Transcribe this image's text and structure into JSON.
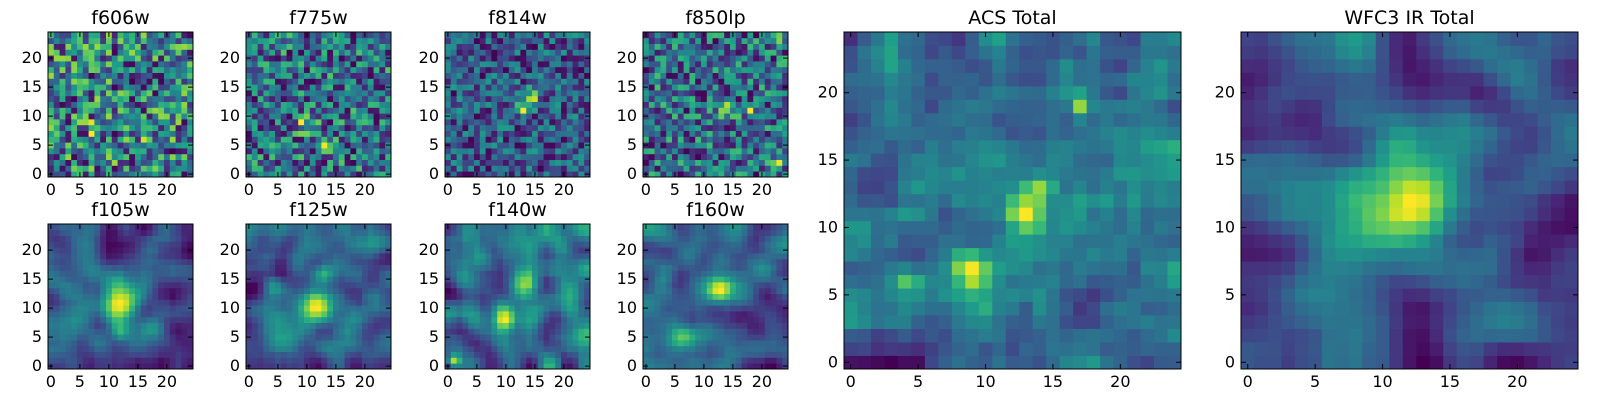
{
  "figure": {
    "description_colormap": "viridis",
    "colormap_stops": [
      "#440154",
      "#482878",
      "#3e4989",
      "#31688e",
      "#26828e",
      "#1f9e89",
      "#35b779",
      "#6ece58",
      "#b5de2b",
      "#fde725"
    ]
  },
  "chart_data": [
    {
      "type": "heatmap",
      "title": "f606w",
      "grid_size": 25,
      "seed": 11,
      "style": "noise",
      "xticks": [
        0,
        5,
        10,
        15,
        20
      ],
      "yticks": [
        0,
        5,
        10,
        15,
        20
      ],
      "xlim": [
        0,
        25
      ],
      "ylim": [
        0,
        25
      ],
      "peaks": [
        {
          "x": 7,
          "y": 8,
          "amp": 0.4,
          "sigma": 0.6
        },
        {
          "x": 16,
          "y": 7,
          "amp": 0.25,
          "sigma": 0.6
        }
      ]
    },
    {
      "type": "heatmap",
      "title": "f775w",
      "grid_size": 25,
      "seed": 23,
      "style": "noise",
      "xticks": [
        0,
        5,
        10,
        15,
        20
      ],
      "yticks": [
        0,
        5,
        10,
        15,
        20
      ],
      "xlim": [
        0,
        25
      ],
      "ylim": [
        0,
        25
      ],
      "peaks": [
        {
          "x": 10,
          "y": 9,
          "amp": 0.3,
          "sigma": 1.2
        },
        {
          "x": 2,
          "y": 1,
          "amp": 0.35,
          "sigma": 0.6
        },
        {
          "x": 13,
          "y": 5,
          "amp": 0.25,
          "sigma": 0.8
        }
      ]
    },
    {
      "type": "heatmap",
      "title": "f814w",
      "grid_size": 25,
      "seed": 37,
      "style": "noise",
      "xticks": [
        0,
        5,
        10,
        15,
        20
      ],
      "yticks": [
        0,
        5,
        10,
        15,
        20
      ],
      "xlim": [
        0,
        25
      ],
      "ylim": [
        0,
        25
      ],
      "peaks": [
        {
          "x": 14,
          "y": 13,
          "amp": 0.55,
          "sigma": 1.1
        },
        {
          "x": 13,
          "y": 11,
          "amp": 0.4,
          "sigma": 0.8
        }
      ]
    },
    {
      "type": "heatmap",
      "title": "f850lp",
      "grid_size": 25,
      "seed": 41,
      "style": "noise",
      "xticks": [
        0,
        5,
        10,
        15,
        20
      ],
      "yticks": [
        0,
        5,
        10,
        15,
        20
      ],
      "xlim": [
        0,
        25
      ],
      "ylim": [
        0,
        25
      ],
      "peaks": [
        {
          "x": 14,
          "y": 11,
          "amp": 0.45,
          "sigma": 0.9
        },
        {
          "x": 18,
          "y": 11,
          "amp": 0.5,
          "sigma": 0.6
        },
        {
          "x": 23,
          "y": 2,
          "amp": 0.45,
          "sigma": 0.7
        },
        {
          "x": 23,
          "y": 23,
          "amp": 0.4,
          "sigma": 0.6
        }
      ]
    },
    {
      "type": "heatmap",
      "title": "f105w",
      "grid_size": 25,
      "seed": 53,
      "style": "smooth",
      "xticks": [
        0,
        5,
        10,
        15,
        20
      ],
      "yticks": [
        0,
        5,
        10,
        15,
        20
      ],
      "xlim": [
        0,
        25
      ],
      "ylim": [
        0,
        25
      ],
      "peaks": [
        {
          "x": 12,
          "y": 11,
          "amp": 0.7,
          "sigma": 2.2
        },
        {
          "x": 12,
          "y": 6,
          "amp": 0.35,
          "sigma": 1.2
        }
      ]
    },
    {
      "type": "heatmap",
      "title": "f125w",
      "grid_size": 25,
      "seed": 67,
      "style": "smooth",
      "xticks": [
        0,
        5,
        10,
        15,
        20
      ],
      "yticks": [
        0,
        5,
        10,
        15,
        20
      ],
      "xlim": [
        0,
        25
      ],
      "ylim": [
        0,
        25
      ],
      "peaks": [
        {
          "x": 11,
          "y": 10,
          "amp": 0.6,
          "sigma": 1.8
        },
        {
          "x": 4,
          "y": 14,
          "amp": 0.3,
          "sigma": 1.2
        },
        {
          "x": 13,
          "y": 16,
          "amp": 0.3,
          "sigma": 1.2
        }
      ]
    },
    {
      "type": "heatmap",
      "title": "f140w",
      "grid_size": 25,
      "seed": 79,
      "style": "smooth",
      "xticks": [
        0,
        5,
        10,
        15,
        20
      ],
      "yticks": [
        0,
        5,
        10,
        15,
        20
      ],
      "xlim": [
        0,
        25
      ],
      "ylim": [
        0,
        25
      ],
      "peaks": [
        {
          "x": 10,
          "y": 8,
          "amp": 0.55,
          "sigma": 1.4
        },
        {
          "x": 14,
          "y": 14,
          "amp": 0.4,
          "sigma": 1.6
        },
        {
          "x": 1,
          "y": 1,
          "amp": 0.5,
          "sigma": 0.8
        }
      ]
    },
    {
      "type": "heatmap",
      "title": "f160w",
      "grid_size": 25,
      "seed": 83,
      "style": "smooth",
      "xticks": [
        0,
        5,
        10,
        15,
        20
      ],
      "yticks": [
        0,
        5,
        10,
        15,
        20
      ],
      "xlim": [
        0,
        25
      ],
      "ylim": [
        0,
        25
      ],
      "peaks": [
        {
          "x": 13,
          "y": 13,
          "amp": 0.75,
          "sigma": 1.7
        },
        {
          "x": 6,
          "y": 5,
          "amp": 0.3,
          "sigma": 1.5
        }
      ]
    },
    {
      "type": "heatmap",
      "title": "ACS Total",
      "grid_size": 25,
      "seed": 97,
      "style": "block",
      "xticks": [
        0,
        5,
        10,
        15,
        20
      ],
      "yticks": [
        0,
        5,
        10,
        15,
        20
      ],
      "xlim": [
        0,
        25
      ],
      "ylim": [
        0,
        25
      ],
      "peaks": [
        {
          "x": 13,
          "y": 11,
          "amp": 0.6,
          "sigma": 1.0
        },
        {
          "x": 14,
          "y": 13,
          "amp": 0.4,
          "sigma": 0.7
        },
        {
          "x": 9,
          "y": 7,
          "amp": 0.4,
          "sigma": 0.9
        },
        {
          "x": 17,
          "y": 19,
          "amp": 0.4,
          "sigma": 0.5
        },
        {
          "x": 4,
          "y": 6,
          "amp": 0.25,
          "sigma": 0.8
        }
      ]
    },
    {
      "type": "heatmap",
      "title": "WFC3 IR Total",
      "grid_size": 25,
      "seed": 101,
      "style": "block-smooth",
      "xticks": [
        0,
        5,
        10,
        15,
        20
      ],
      "yticks": [
        0,
        5,
        10,
        15,
        20
      ],
      "xlim": [
        0,
        25
      ],
      "ylim": [
        0,
        25
      ],
      "peaks": [
        {
          "x": 12,
          "y": 12,
          "amp": 0.75,
          "sigma": 2.6
        },
        {
          "x": 15,
          "y": 17,
          "amp": 0.2,
          "sigma": 1.5
        }
      ]
    }
  ]
}
